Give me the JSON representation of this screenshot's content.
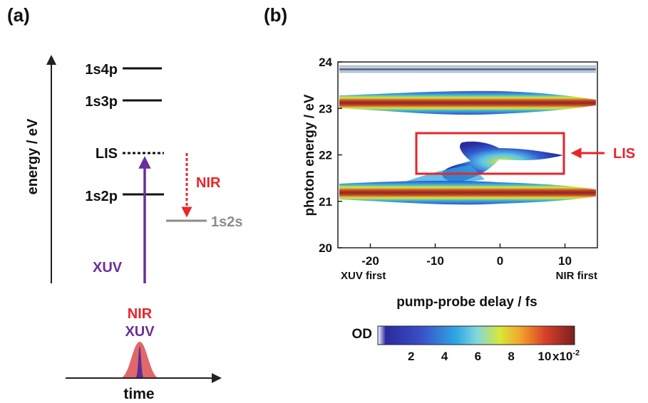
{
  "panel_a": {
    "label": "(a)",
    "y_axis_label": "energy / eV",
    "levels": [
      {
        "name": "1s4p"
      },
      {
        "name": "1s3p"
      },
      {
        "name": "LIS"
      },
      {
        "name": "1s2p"
      },
      {
        "name": "1s2s"
      }
    ],
    "nir_label": "NIR",
    "xuv_label": "XUV",
    "pulse_nir_label": "NIR",
    "pulse_xuv_label": "XUV",
    "time_label": "time",
    "colors": {
      "xuv": "#6a2f9b",
      "nir": "#e8252b",
      "gray": "#8c8c8c",
      "pulse_nir": "#e2676a",
      "pulse_xuv": "#5b2d91"
    }
  },
  "panel_b": {
    "label": "(b)",
    "lis_label": "LIS",
    "lis_color": "#e8252b",
    "colorbar": {
      "label": "OD",
      "ticks": [
        "2",
        "4",
        "6",
        "8",
        "10"
      ],
      "multiplier": "x10",
      "exponent": "-2",
      "colors": [
        "#ffffff",
        "#2b2a9e",
        "#3a4fc8",
        "#2fa8e2",
        "#7fd6e0",
        "#d8e83a",
        "#f3a72b",
        "#d8402a",
        "#7a1f1f"
      ]
    }
  },
  "chart_data": {
    "type": "heatmap",
    "title": "",
    "xlabel": "pump-probe delay / fs",
    "ylabel": "photon energy / eV",
    "xlim": [
      -25,
      15
    ],
    "ylim": [
      20,
      24
    ],
    "x_ticks": [
      "-20",
      "-10",
      "0",
      "10"
    ],
    "y_ticks": [
      "20",
      "21",
      "22",
      "23",
      "24"
    ],
    "x_annotations": {
      "left": "XUV first",
      "right": "NIR first"
    },
    "bands": [
      {
        "name": "1s4p",
        "energy": 23.75,
        "delay_range": [
          -25,
          15
        ]
      },
      {
        "name": "1s3p",
        "energy": 23.08,
        "delay_range": [
          -25,
          15
        ]
      },
      {
        "name": "LIS",
        "energy": 21.9,
        "delay_range": [
          -10,
          9
        ]
      },
      {
        "name": "1s2p",
        "energy": 21.15,
        "delay_range": [
          -25,
          15
        ]
      }
    ],
    "highlight_box": {
      "x": [
        -13,
        8
      ],
      "y": [
        21.55,
        22.45
      ],
      "label": "LIS"
    }
  }
}
